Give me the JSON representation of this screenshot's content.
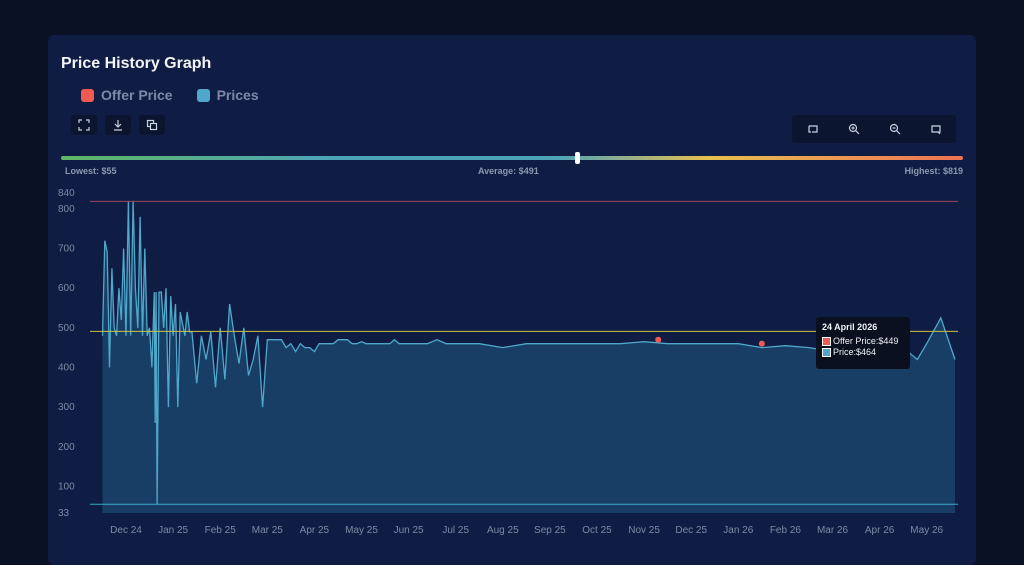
{
  "title": "Price History Graph",
  "legend": [
    {
      "label": "Offer Price",
      "color": "#ef5b52"
    },
    {
      "label": "Prices",
      "color": "#4fa8c9"
    }
  ],
  "stats": {
    "lowest": "Lowest: $55",
    "average": "Average: $491",
    "highest": "Highest: $819"
  },
  "toolbar": {
    "left_icons": [
      "expand-icon",
      "download-icon",
      "copy-icon"
    ],
    "right_icons": [
      "reset-icon",
      "zoom-in-icon",
      "zoom-out-icon",
      "pan-icon"
    ]
  },
  "tooltip": {
    "date": "24 April 2026",
    "offer": "Offer Price:$449",
    "price": "Price:$464"
  },
  "chart_data": {
    "type": "area",
    "yticks": [
      33,
      100,
      200,
      300,
      400,
      500,
      600,
      700,
      800,
      840
    ],
    "ylim": [
      33,
      840
    ],
    "xticks": [
      "Dec 24",
      "Jan 25",
      "Feb 25",
      "Mar 25",
      "Apr 25",
      "May 25",
      "Jun 25",
      "Jul 25",
      "Aug 25",
      "Sep 25",
      "Oct 25",
      "Nov 25",
      "Dec 25",
      "Jan 26",
      "Feb 26",
      "Mar 26",
      "Apr 26",
      "May 26"
    ],
    "reference_lines": {
      "highest": 819,
      "average": 491,
      "lowest": 55
    },
    "series": [
      {
        "name": "Prices",
        "color": "#4fa8c9",
        "x": [
          -0.5,
          -0.45,
          -0.4,
          -0.35,
          -0.3,
          -0.25,
          -0.2,
          -0.15,
          -0.1,
          -0.05,
          0.0,
          0.05,
          0.1,
          0.15,
          0.2,
          0.25,
          0.3,
          0.35,
          0.4,
          0.45,
          0.5,
          0.55,
          0.6,
          0.62,
          0.64,
          0.66,
          0.7,
          0.75,
          0.8,
          0.85,
          0.9,
          0.95,
          1.0,
          1.05,
          1.1,
          1.15,
          1.2,
          1.25,
          1.3,
          1.35,
          1.4,
          1.5,
          1.6,
          1.7,
          1.8,
          1.9,
          2.0,
          2.1,
          2.2,
          2.3,
          2.4,
          2.5,
          2.6,
          2.7,
          2.8,
          2.9,
          3.0,
          3.1,
          3.2,
          3.3,
          3.4,
          3.5,
          3.6,
          3.7,
          3.8,
          3.9,
          4.0,
          4.1,
          4.2,
          4.3,
          4.4,
          4.5,
          4.6,
          4.7,
          4.8,
          4.9,
          5.0,
          5.1,
          5.2,
          5.3,
          5.4,
          5.5,
          5.6,
          5.7,
          5.8,
          5.9,
          6.0,
          6.2,
          6.4,
          6.6,
          6.8,
          7.0,
          7.5,
          8.0,
          8.5,
          9.0,
          9.5,
          10.0,
          10.5,
          11.0,
          11.5,
          12.0,
          12.5,
          13.0,
          13.5,
          14.0,
          14.5,
          15.0,
          15.3,
          15.6,
          16.0,
          16.2,
          16.5,
          16.8,
          17.0,
          17.3,
          17.6
        ],
        "values": [
          480,
          720,
          690,
          400,
          650,
          500,
          480,
          600,
          520,
          700,
          480,
          820,
          480,
          820,
          600,
          500,
          780,
          480,
          700,
          480,
          500,
          400,
          590,
          260,
          590,
          55,
          590,
          590,
          500,
          600,
          300,
          580,
          480,
          560,
          300,
          540,
          510,
          480,
          540,
          490,
          490,
          360,
          480,
          420,
          490,
          350,
          500,
          370,
          560,
          480,
          410,
          500,
          380,
          420,
          480,
          300,
          470,
          470,
          470,
          470,
          450,
          460,
          440,
          460,
          450,
          450,
          440,
          460,
          460,
          460,
          460,
          470,
          470,
          470,
          460,
          460,
          465,
          460,
          460,
          460,
          460,
          460,
          460,
          470,
          460,
          460,
          460,
          460,
          460,
          470,
          460,
          460,
          460,
          450,
          460,
          460,
          460,
          460,
          460,
          465,
          460,
          460,
          460,
          460,
          450,
          455,
          450,
          440,
          460,
          420,
          460,
          520,
          450,
          420,
          460,
          525,
          420
        ]
      },
      {
        "name": "Offer Price",
        "color": "#ef5b52",
        "x": [
          11.3,
          13.5,
          16.5
        ],
        "values": [
          470,
          460,
          449
        ]
      }
    ]
  }
}
